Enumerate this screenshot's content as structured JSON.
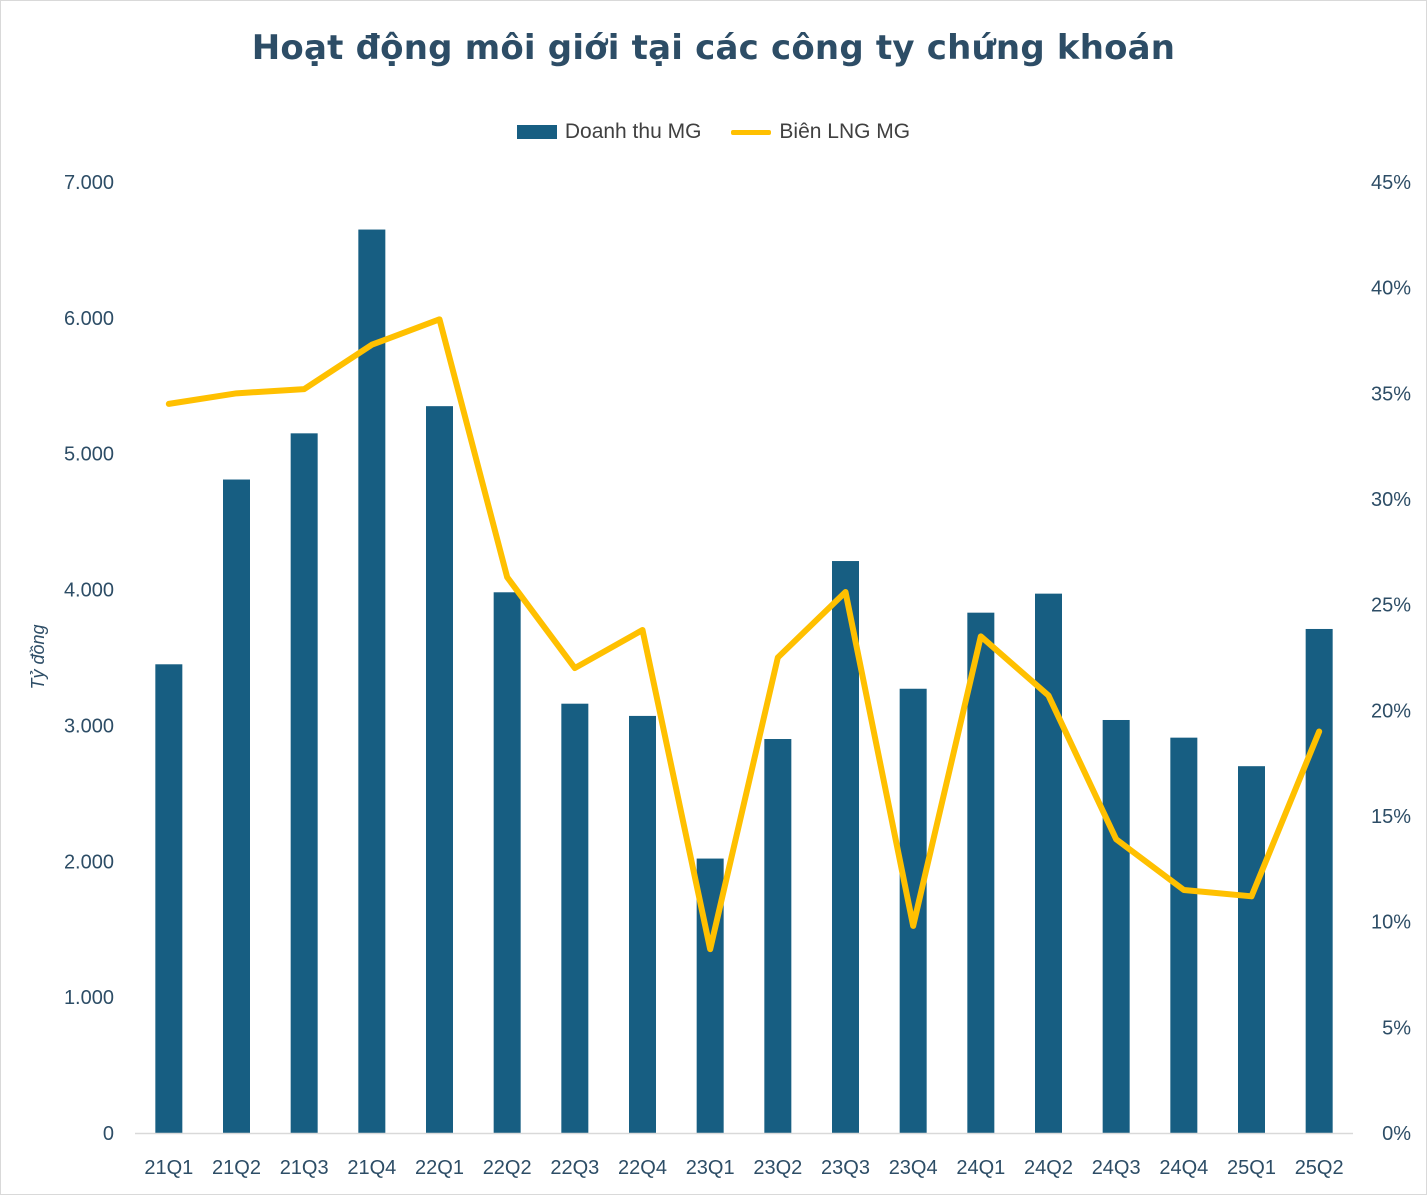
{
  "chart_data": {
    "type": "bar",
    "title": "Hoạt động môi giới tại các công ty chứng khoán",
    "ylabel": "Tỷ đồng",
    "xlabel": "",
    "categories": [
      "21Q1",
      "21Q2",
      "21Q3",
      "21Q4",
      "22Q1",
      "22Q2",
      "22Q3",
      "22Q4",
      "23Q1",
      "23Q2",
      "23Q3",
      "23Q4",
      "24Q1",
      "24Q2",
      "24Q3",
      "24Q4",
      "25Q1",
      "25Q2"
    ],
    "ylim": [
      0,
      7000
    ],
    "y2lim": [
      0,
      45
    ],
    "y_ticks": [
      {
        "value": 0,
        "label": "0"
      },
      {
        "value": 1000,
        "label": "1.000"
      },
      {
        "value": 2000,
        "label": "2.000"
      },
      {
        "value": 3000,
        "label": "3.000"
      },
      {
        "value": 4000,
        "label": "4.000"
      },
      {
        "value": 5000,
        "label": "5.000"
      },
      {
        "value": 6000,
        "label": "6.000"
      },
      {
        "value": 7000,
        "label": "7.000"
      }
    ],
    "y2_ticks": [
      {
        "value": 0,
        "label": "0%"
      },
      {
        "value": 5,
        "label": "5%"
      },
      {
        "value": 10,
        "label": "10%"
      },
      {
        "value": 15,
        "label": "15%"
      },
      {
        "value": 20,
        "label": "20%"
      },
      {
        "value": 25,
        "label": "25%"
      },
      {
        "value": 30,
        "label": "30%"
      },
      {
        "value": 35,
        "label": "35%"
      },
      {
        "value": 40,
        "label": "40%"
      },
      {
        "value": 45,
        "label": "45%"
      }
    ],
    "series": [
      {
        "name": "Doanh thu MG",
        "type": "bar",
        "axis": "left",
        "color": "#175e82",
        "values": [
          3450,
          4810,
          5150,
          6650,
          5350,
          3980,
          3160,
          3070,
          2020,
          2900,
          4210,
          3270,
          3830,
          3970,
          3040,
          2910,
          2700,
          3710
        ]
      },
      {
        "name": "Biên LNG MG",
        "type": "line",
        "axis": "right",
        "unit": "%",
        "color": "#ffc000",
        "values": [
          34.5,
          35.0,
          35.2,
          37.3,
          38.5,
          26.3,
          22.0,
          23.8,
          8.7,
          22.5,
          25.6,
          9.8,
          23.5,
          20.7,
          13.9,
          11.5,
          11.2,
          19.0
        ]
      }
    ],
    "legend_position": "top-center",
    "grid": false
  }
}
